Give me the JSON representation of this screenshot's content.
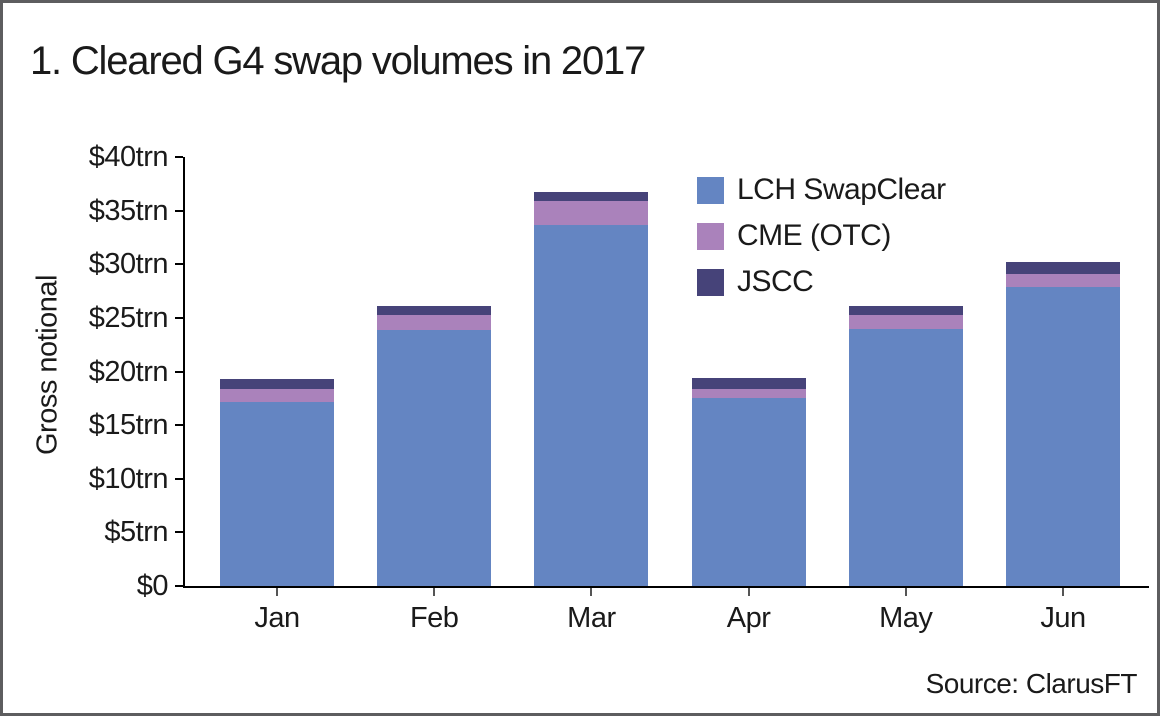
{
  "chart_data": {
    "type": "bar",
    "stacked": true,
    "title": "1. Cleared G4 swap volumes in 2017",
    "ylabel": "Gross notional",
    "ylim": [
      0,
      40
    ],
    "ytick_step": 5,
    "ytick_labels": [
      "$0",
      "$5trn",
      "$10trn",
      "$15trn",
      "$20trn",
      "$25trn",
      "$30trn",
      "$35trn",
      "$40trn"
    ],
    "categories": [
      "Jan",
      "Feb",
      "Mar",
      "Apr",
      "May",
      "Jun"
    ],
    "series": [
      {
        "name": "LCH SwapClear",
        "color": "#6485c2",
        "values": [
          17.2,
          23.9,
          33.7,
          17.5,
          24.0,
          27.9
        ]
      },
      {
        "name": "CME (OTC)",
        "color": "#aa82bb",
        "values": [
          1.2,
          1.4,
          2.2,
          0.9,
          1.3,
          1.2
        ]
      },
      {
        "name": "JSCC",
        "color": "#464379",
        "values": [
          0.9,
          0.8,
          0.8,
          1.0,
          0.8,
          1.1
        ]
      }
    ],
    "totals": [
      19.3,
      26.1,
      36.7,
      19.4,
      26.1,
      30.2
    ],
    "grid": false,
    "legend_position": "upper-right-inside",
    "source": "Source: ClarusFT"
  }
}
